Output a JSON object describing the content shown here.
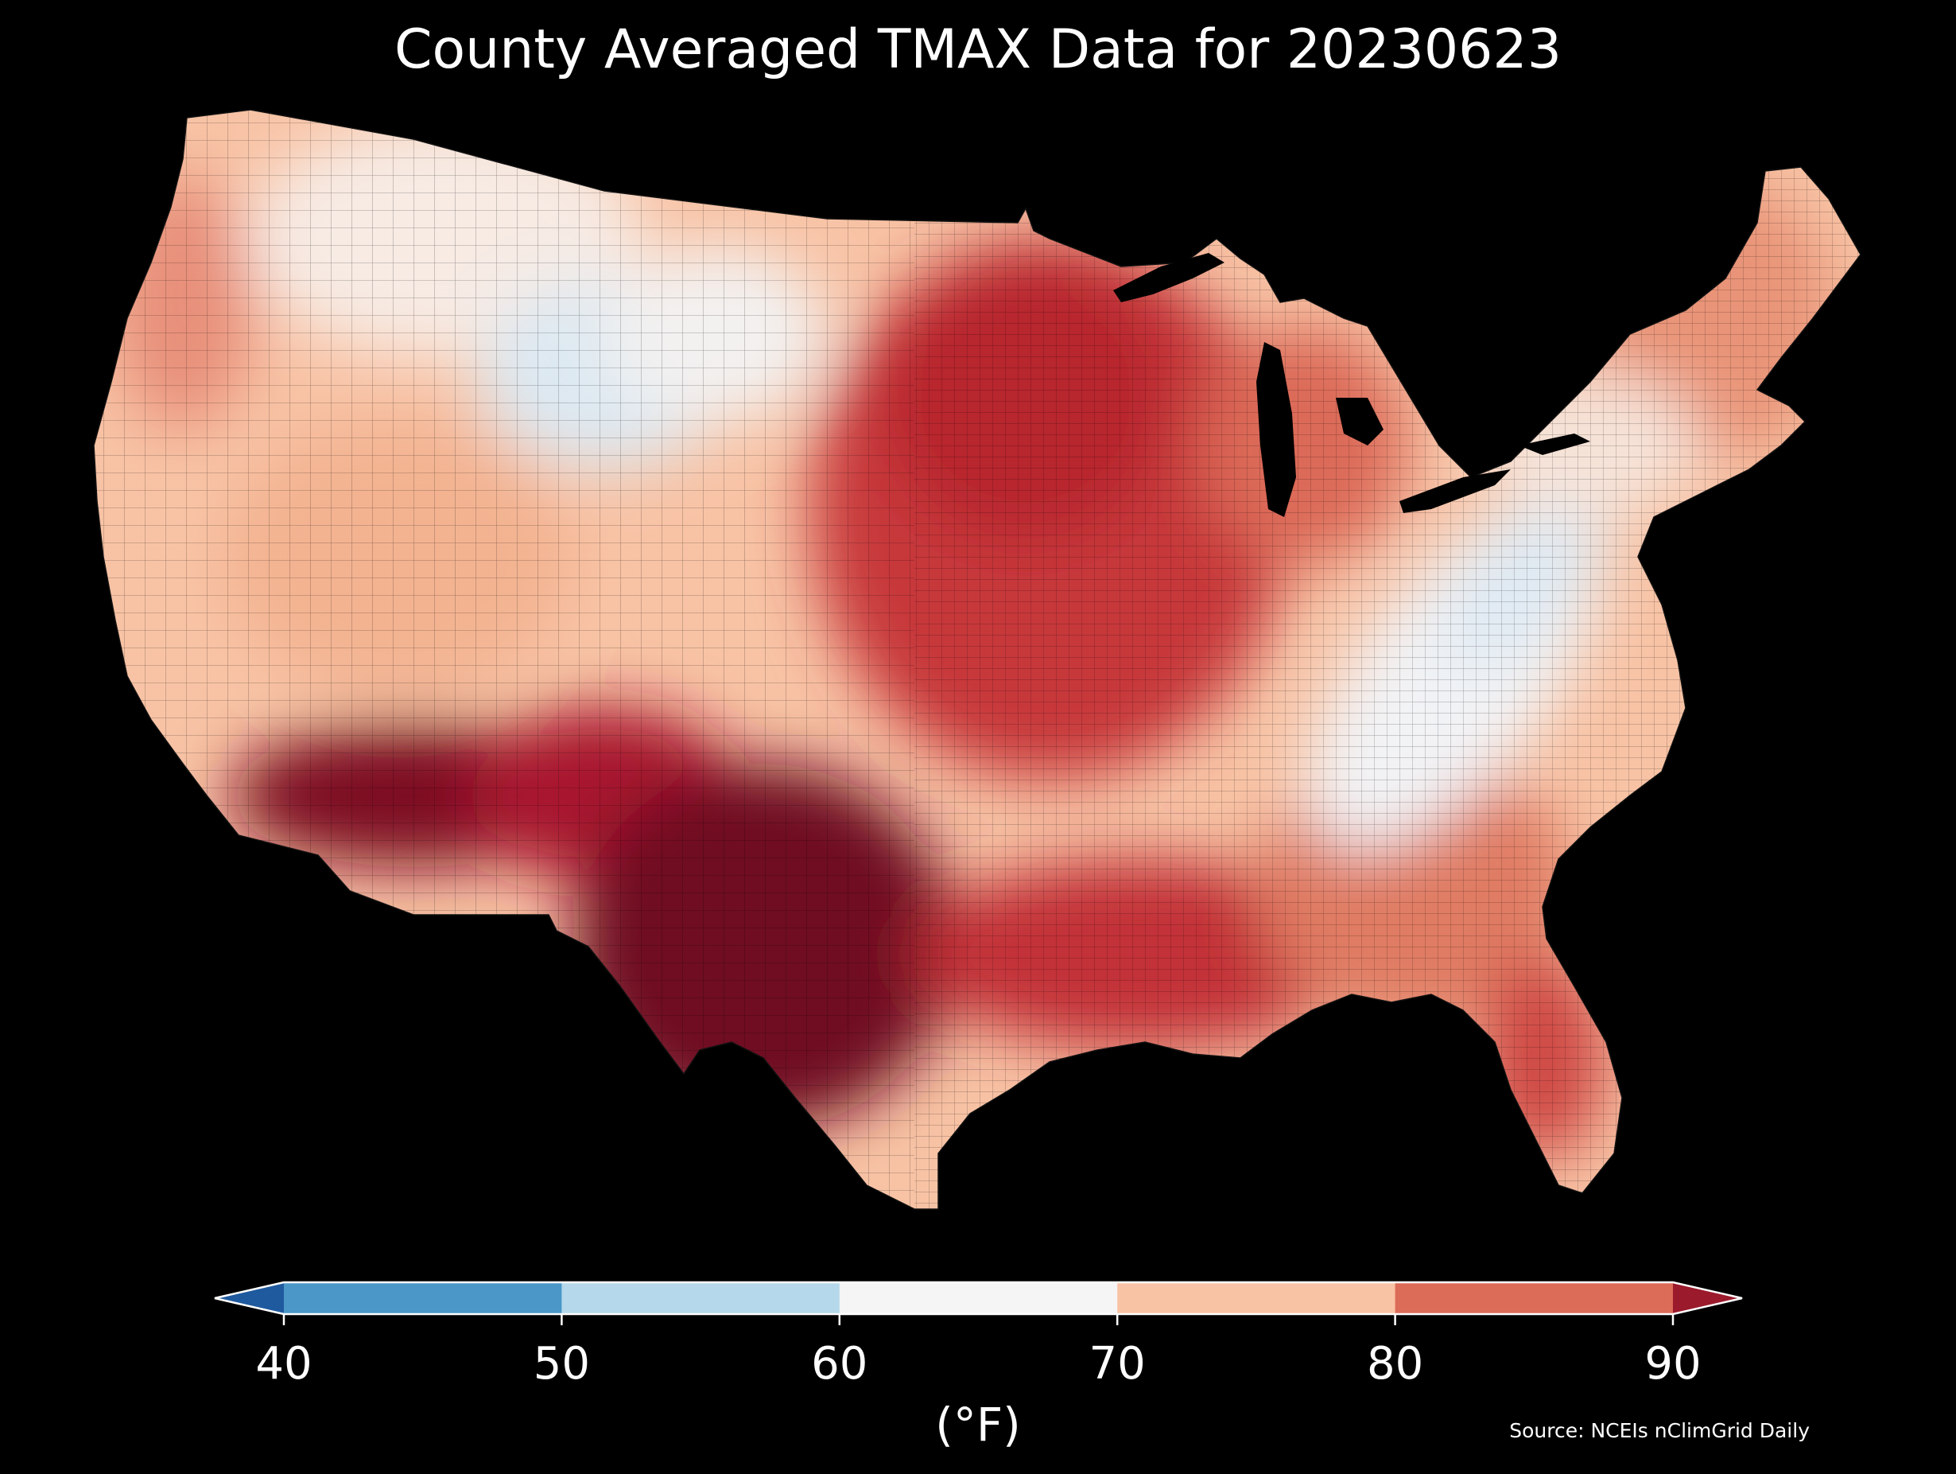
{
  "title": "County Averaged TMAX Data for 20230623",
  "source": "Source: NCEIs nClimGrid Daily",
  "colorbar": {
    "unit_label": "(°F)",
    "ticks": [
      "40",
      "50",
      "60",
      "70",
      "80",
      "90"
    ],
    "bins": [
      {
        "range": "<40",
        "color": "#1f5a9e"
      },
      {
        "range": "40-50",
        "color": "#4a97c8"
      },
      {
        "range": "50-60",
        "color": "#b5d8ea"
      },
      {
        "range": "60-70",
        "color": "#f5f5f5"
      },
      {
        "range": "70-80",
        "color": "#f8c3a5"
      },
      {
        "range": "80-90",
        "color": "#dc6b58"
      },
      {
        "range": ">90",
        "color": "#9b1a2c"
      }
    ],
    "extend": "both"
  },
  "map": {
    "region": "Contiguous United States",
    "unit": "county",
    "variable": "TMAX",
    "date": "20230623",
    "background": "#000000",
    "regional_pattern": [
      {
        "region": "Pacific Northwest coast",
        "range": "70-80"
      },
      {
        "region": "Northern Rockies / Wyoming",
        "range": "50-60"
      },
      {
        "region": "Great Basin / Utah",
        "range": "70-80"
      },
      {
        "region": "Southern Arizona / New Mexico",
        "range": ">90"
      },
      {
        "region": "Texas",
        "range": ">90"
      },
      {
        "region": "Central Plains / Midwest",
        "range": "80-90"
      },
      {
        "region": "Gulf Coast",
        "range": "80-90"
      },
      {
        "region": "Appalachians / Mid-Atlantic",
        "range": "50-60"
      },
      {
        "region": "Northeast / New England",
        "range": "70-80"
      },
      {
        "region": "Florida",
        "range": "80-90"
      }
    ]
  }
}
